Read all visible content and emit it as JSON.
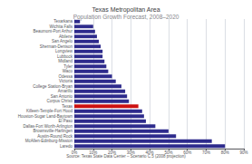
{
  "chart_data": {
    "type": "bar",
    "orientation": "horizontal",
    "title": "Texas Metropolitan Area",
    "subtitle": "Population Growth Forecast, 2008–2020",
    "annotations": [
      "Source: Texas State Data Center – Scenario C.5 (2008 projection)"
    ],
    "categories": [
      "Texarkana",
      "Wichita Falls",
      "Beaumont-Port Arthur",
      "Abilene",
      "San Angelo",
      "Sherman-Denison",
      "Longview",
      "Lubbock",
      "Midland",
      "Tyler",
      "Waco",
      "Odessa",
      "Victoria",
      "College Station-Bryan",
      "Amarillo",
      "San Antonio",
      "Corpus Christi",
      "Texas",
      "Killeen-Temple-Fort Hood",
      "Houston-Sugar Land-Baytown",
      "El Paso",
      "Dallas-Fort Worth-Arlington",
      "Brownsville-Harlingen",
      "Austin-Round Rock",
      "McAllen-Edinburg-Mission",
      "Laredo"
    ],
    "values": [
      3,
      10,
      11,
      12,
      13,
      14,
      15,
      15,
      16,
      17,
      18,
      20,
      22,
      25,
      27,
      28,
      29,
      34,
      36,
      37,
      38,
      43,
      50,
      54,
      73,
      80
    ],
    "colors": [
      "#2e2b8c",
      "#2e2b8c",
      "#2e2b8c",
      "#2e2b8c",
      "#2e2b8c",
      "#2e2b8c",
      "#2e2b8c",
      "#2e2b8c",
      "#2e2b8c",
      "#2e2b8c",
      "#2e2b8c",
      "#2e2b8c",
      "#2e2b8c",
      "#2e2b8c",
      "#2e2b8c",
      "#2e2b8c",
      "#2e2b8c",
      "#cc1111",
      "#2e2b8c",
      "#2e2b8c",
      "#2e2b8c",
      "#2e2b8c",
      "#2e2b8c",
      "#2e2b8c",
      "#2e2b8c",
      "#2e2b8c"
    ],
    "xlim": [
      0,
      90
    ],
    "xticks": [
      {
        "value": 0,
        "label": "0%"
      },
      {
        "value": 10,
        "label": "10%"
      },
      {
        "value": 20,
        "label": "20%"
      },
      {
        "value": 30,
        "label": "30%"
      },
      {
        "value": 40,
        "label": "40%"
      },
      {
        "value": 50,
        "label": "50%"
      },
      {
        "value": 60,
        "label": "60%"
      },
      {
        "value": 70,
        "label": "70%"
      },
      {
        "value": 80,
        "label": "80%"
      },
      {
        "value": 90,
        "label": "90%"
      }
    ],
    "grid": true
  }
}
